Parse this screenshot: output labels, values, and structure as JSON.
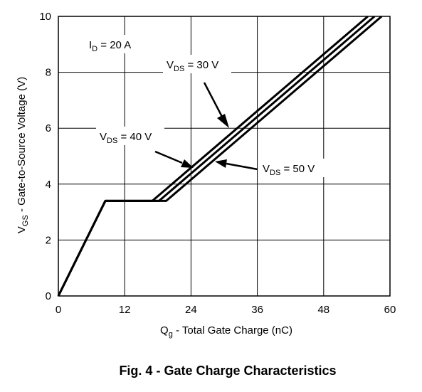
{
  "caption": "Fig. 4 - Gate Charge Characteristics",
  "chart_data": {
    "type": "line",
    "title": "",
    "xlabel": {
      "main": "Q",
      "sub": "g",
      "rest": " - Total Gate Charge (nC)"
    },
    "ylabel": {
      "main": "V",
      "sub": "GS",
      "rest": " - Gate-to-Source Voltage (V)"
    },
    "xlim": [
      0,
      60
    ],
    "ylim": [
      0,
      10
    ],
    "xticks": [
      0,
      12,
      24,
      36,
      48,
      60
    ],
    "yticks": [
      0,
      2,
      4,
      6,
      8,
      10
    ],
    "grid": true,
    "series": [
      {
        "name": "VDS = 30 V",
        "x": [
          0,
          8.5,
          17,
          56
        ],
        "y": [
          0,
          3.4,
          3.4,
          10
        ]
      },
      {
        "name": "VDS = 40 V",
        "x": [
          0,
          8.5,
          18.2,
          57.2
        ],
        "y": [
          0,
          3.4,
          3.4,
          10
        ]
      },
      {
        "name": "VDS = 50 V",
        "x": [
          0,
          8.5,
          19.5,
          58.5
        ],
        "y": [
          0,
          3.4,
          3.4,
          10
        ]
      }
    ],
    "annotations": [
      {
        "main": "I",
        "sub": "D",
        "rest": " = 20 A"
      },
      {
        "main": "V",
        "sub": "DS",
        "rest": " = 30 V"
      },
      {
        "main": "V",
        "sub": "DS",
        "rest": " = 40 V"
      },
      {
        "main": "V",
        "sub": "DS",
        "rest": " = 50 V"
      }
    ]
  }
}
